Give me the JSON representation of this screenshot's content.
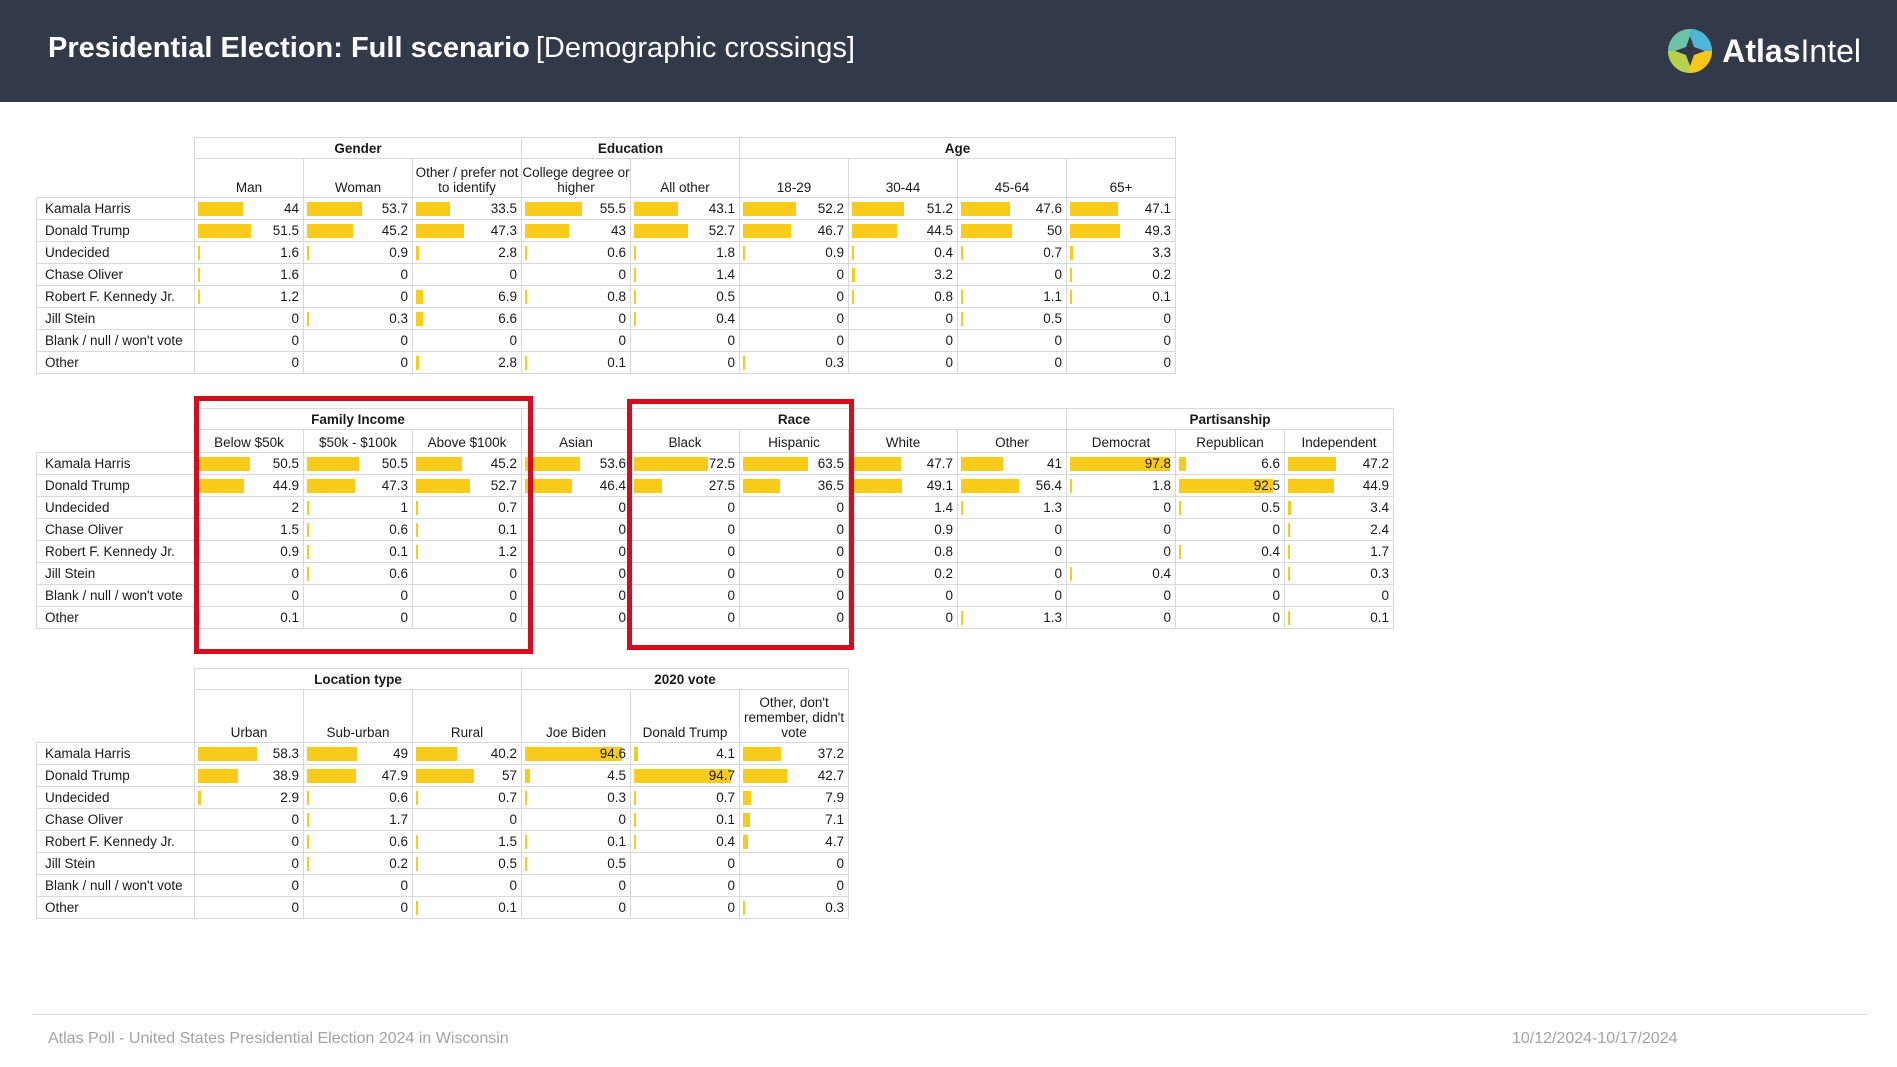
{
  "header": {
    "title_bold": "Presidential Election: Full scenario",
    "title_rest": "[Demographic crossings]",
    "logo_text_bold": "Atlas",
    "logo_text_rest": "Intel"
  },
  "footer": {
    "left": "Atlas Poll - United States Presidential Election 2024 in Wisconsin",
    "right": "10/12/2024-10/17/2024"
  },
  "colors": {
    "bar": "#f9cb1a",
    "highlight": "#d50c1e",
    "header_bg": "#323a49"
  },
  "rows": [
    "Kamala Harris",
    "Donald Trump",
    "Undecided",
    "Chase Oliver",
    "Robert F. Kennedy Jr.",
    "Jill Stein",
    "Blank / null / won't vote",
    "Other"
  ],
  "tables": [
    {
      "groups": [
        {
          "label": "Gender",
          "columns": [
            "Man",
            "Woman",
            "Other / prefer not to identify"
          ]
        },
        {
          "label": "Education",
          "columns": [
            "College degree or higher",
            "All other"
          ]
        },
        {
          "label": "Age",
          "columns": [
            "18-29",
            "30-44",
            "45-64",
            "65+"
          ]
        }
      ],
      "values": [
        [
          44,
          53.7,
          33.5,
          55.5,
          43.1,
          52.2,
          51.2,
          47.6,
          47.1
        ],
        [
          51.5,
          45.2,
          47.3,
          43,
          52.7,
          46.7,
          44.5,
          50,
          49.3
        ],
        [
          1.6,
          0.9,
          2.8,
          0.6,
          1.8,
          0.9,
          0.4,
          0.7,
          3.3
        ],
        [
          1.6,
          0,
          0,
          0,
          1.4,
          0,
          3.2,
          0,
          0.2
        ],
        [
          1.2,
          0,
          6.9,
          0.8,
          0.5,
          0,
          0.8,
          1.1,
          0.1
        ],
        [
          0,
          0.3,
          6.6,
          0,
          0.4,
          0,
          0,
          0.5,
          0
        ],
        [
          0,
          0,
          0,
          0,
          0,
          0,
          0,
          0,
          0
        ],
        [
          0,
          0,
          2.8,
          0.1,
          0,
          0.3,
          0,
          0,
          0
        ]
      ]
    },
    {
      "groups": [
        {
          "label": "Family Income",
          "columns": [
            "Below $50k",
            "$50k - $100k",
            "Above $100k"
          ]
        },
        {
          "label": "Race",
          "columns": [
            "Asian",
            "Black",
            "Hispanic",
            "White",
            "Other"
          ]
        },
        {
          "label": "Partisanship",
          "columns": [
            "Democrat",
            "Republican",
            "Independent"
          ]
        }
      ],
      "values": [
        [
          50.5,
          50.5,
          45.2,
          53.6,
          72.5,
          63.5,
          47.7,
          41,
          97.8,
          6.6,
          47.2
        ],
        [
          44.9,
          47.3,
          52.7,
          46.4,
          27.5,
          36.5,
          49.1,
          56.4,
          1.8,
          92.5,
          44.9
        ],
        [
          2,
          1,
          0.7,
          0,
          0,
          0,
          1.4,
          1.3,
          0,
          0.5,
          3.4
        ],
        [
          1.5,
          0.6,
          0.1,
          0,
          0,
          0,
          0.9,
          0,
          0,
          0,
          2.4
        ],
        [
          0.9,
          0.1,
          1.2,
          0,
          0,
          0,
          0.8,
          0,
          0,
          0.4,
          1.7
        ],
        [
          0,
          0.6,
          0,
          0,
          0,
          0,
          0.2,
          0,
          0.4,
          0,
          0.3
        ],
        [
          0,
          0,
          0,
          0,
          0,
          0,
          0,
          0,
          0,
          0,
          0
        ],
        [
          0.1,
          0,
          0,
          0,
          0,
          0,
          0,
          1.3,
          0,
          0,
          0.1
        ]
      ]
    },
    {
      "groups": [
        {
          "label": "Location type",
          "columns": [
            "Urban",
            "Sub-urban",
            "Rural"
          ]
        },
        {
          "label": "2020 vote",
          "columns": [
            "Joe Biden",
            "Donald Trump",
            "Other, don't remember, didn't vote"
          ]
        }
      ],
      "values": [
        [
          58.3,
          49,
          40.2,
          94.6,
          4.1,
          37.2
        ],
        [
          38.9,
          47.9,
          57,
          4.5,
          94.7,
          42.7
        ],
        [
          2.9,
          0.6,
          0.7,
          0.3,
          0.7,
          7.9
        ],
        [
          0,
          1.7,
          0,
          0,
          0.1,
          7.1
        ],
        [
          0,
          0.6,
          1.5,
          0.1,
          0.4,
          4.7
        ],
        [
          0,
          0.2,
          0.5,
          0.5,
          0,
          0
        ],
        [
          0,
          0,
          0,
          0,
          0,
          0
        ],
        [
          0,
          0,
          0.1,
          0,
          0,
          0.3
        ]
      ]
    }
  ]
}
